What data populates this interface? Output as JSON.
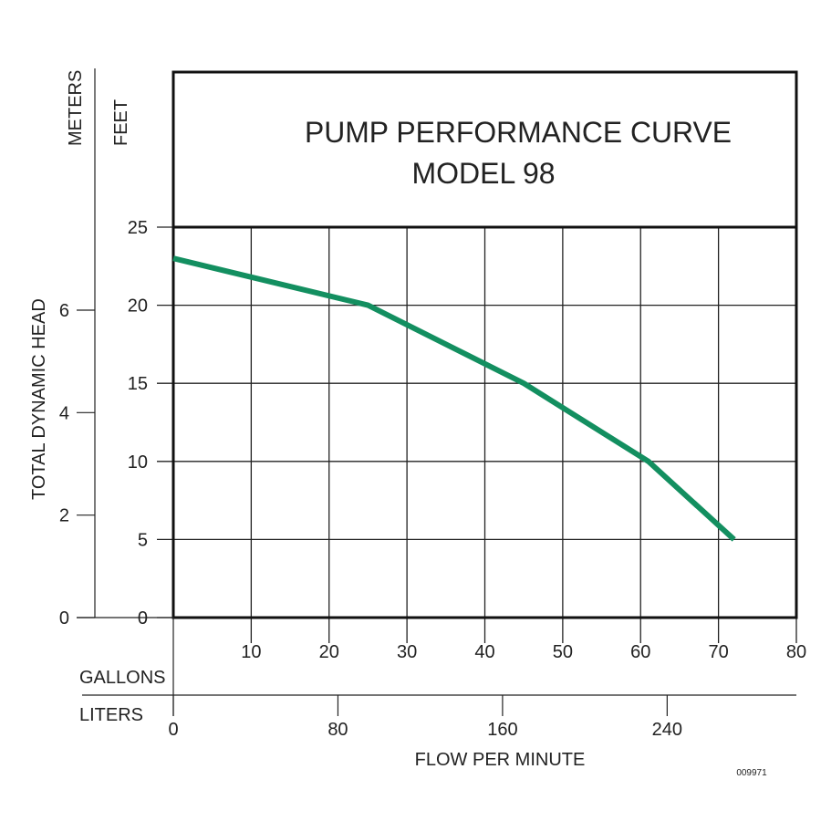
{
  "chart_data": {
    "type": "line",
    "title": "PUMP PERFORMANCE CURVE",
    "subtitle": "MODEL 98",
    "ylabel": "TOTAL DYNAMIC HEAD",
    "y_units_left": "METERS",
    "y_units_right": "FEET",
    "xlabel": "FLOW PER MINUTE",
    "x_units_primary": "GALLONS",
    "x_units_secondary": "LITERS",
    "xlim": [
      0,
      80
    ],
    "ylim": [
      0,
      25
    ],
    "grid": true,
    "x_ticks": [
      "10",
      "20",
      "30",
      "40",
      "50",
      "60",
      "70",
      "80"
    ],
    "x_tick_values": [
      10,
      20,
      30,
      40,
      50,
      60,
      70,
      80
    ],
    "y_ticks_feet": [
      "0",
      "5",
      "10",
      "15",
      "20",
      "25"
    ],
    "y_tick_values_feet": [
      0,
      5,
      10,
      15,
      20,
      25
    ],
    "y_ticks_meters": [
      "0",
      "2",
      "4",
      "6"
    ],
    "y_tick_values_meters": [
      0,
      2,
      4,
      6
    ],
    "liters_ticks": [
      "0",
      "80",
      "160",
      "240"
    ],
    "liters_tick_values": [
      0,
      80,
      160,
      240
    ],
    "series": [
      {
        "x": [
          0,
          25,
          45,
          61,
          72
        ],
        "y": [
          23,
          20,
          15,
          10,
          5
        ]
      }
    ],
    "line_color": "#138f60",
    "code": "009971"
  }
}
